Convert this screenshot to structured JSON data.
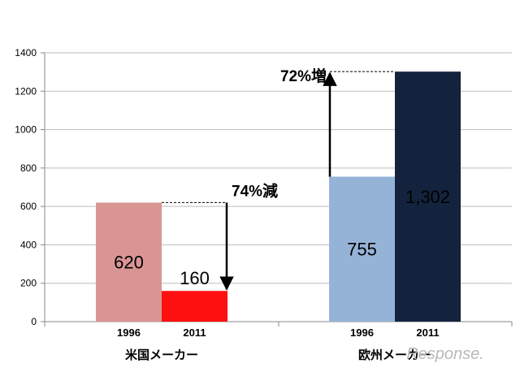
{
  "chart_data": {
    "type": "bar",
    "groups": [
      {
        "label": "米国メーカー",
        "categories": [
          "1996",
          "2011"
        ],
        "values": [
          620,
          160
        ],
        "value_labels": [
          "620",
          "160"
        ],
        "colors": [
          "#d99594",
          "#ff1010"
        ]
      },
      {
        "label": "欧州メーカー",
        "categories": [
          "1996",
          "2011"
        ],
        "values": [
          755,
          1302
        ],
        "value_labels": [
          "755",
          "1,302"
        ],
        "colors": [
          "#95b3d7",
          "#13233d"
        ]
      }
    ],
    "ylim": [
      0,
      1400
    ],
    "yticks": [
      0,
      200,
      400,
      600,
      800,
      1000,
      1200,
      1400
    ],
    "grid": true,
    "annotations": [
      {
        "text": "74%減",
        "from_value": 620,
        "to_value": 160,
        "direction": "down"
      },
      {
        "text": "72%増",
        "from_value": 755,
        "to_value": 1302,
        "direction": "up"
      }
    ]
  },
  "watermark": "Response."
}
